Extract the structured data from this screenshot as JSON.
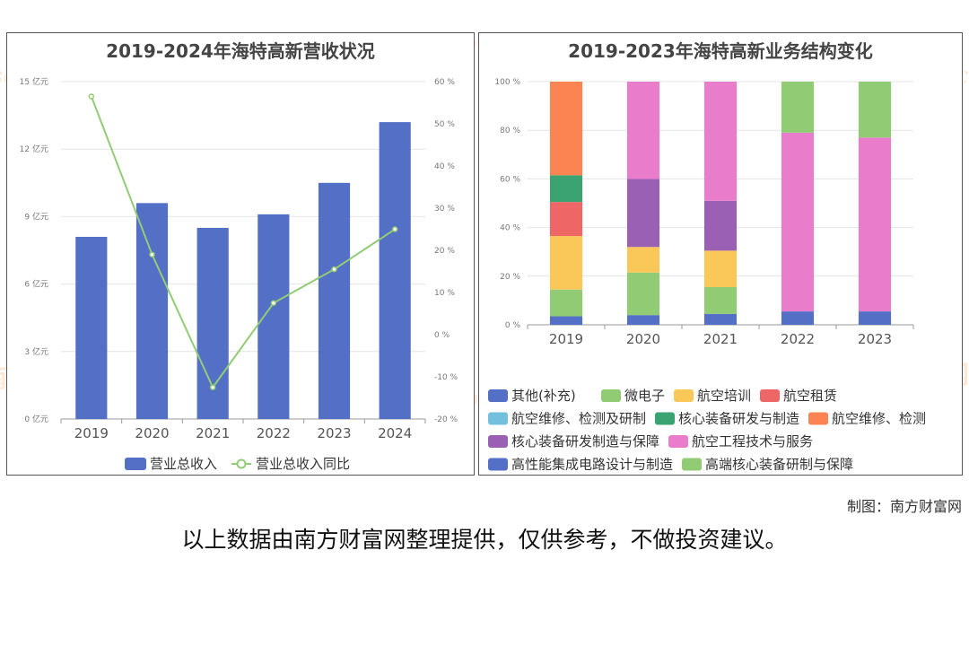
{
  "left": {
    "title": "2019-2024年海特高新营收状况",
    "chart_data": {
      "type": "bar",
      "categories": [
        "2019",
        "2020",
        "2021",
        "2022",
        "2023",
        "2024"
      ],
      "series": [
        {
          "name": "营业总收入",
          "type": "bar",
          "axis": "left",
          "values": [
            8.1,
            9.6,
            8.5,
            9.1,
            10.5,
            13.2
          ]
        },
        {
          "name": "营业总收入同比",
          "type": "line",
          "axis": "right",
          "values": [
            56.5,
            19.0,
            -12.5,
            7.5,
            15.5,
            25.0
          ]
        }
      ],
      "ylim_left": [
        0,
        15
      ],
      "yticks_left": [
        "0 亿元",
        "3 亿元",
        "6 亿元",
        "9 亿元",
        "12 亿元",
        "15 亿元"
      ],
      "ylim_right": [
        -20,
        60
      ],
      "yticks_right": [
        "-20 %",
        "-10 %",
        "0 %",
        "10 %",
        "20 %",
        "30 %",
        "40 %",
        "50 %",
        "60 %"
      ],
      "colors": {
        "bar": "#5470c6",
        "line": "#91cc75"
      },
      "legend_position": "bottom"
    }
  },
  "right": {
    "title": "2019-2023年海特高新业务结构变化",
    "chart_data": {
      "type": "bar",
      "stacked": true,
      "categories": [
        "2019",
        "2020",
        "2021",
        "2022",
        "2023"
      ],
      "ylim": [
        0,
        100
      ],
      "yticks": [
        "0 %",
        "20 %",
        "40 %",
        "60 %",
        "80 %",
        "100 %"
      ],
      "series": [
        {
          "name": "其他(补充)",
          "color": "#5470c6",
          "values": [
            3.5,
            4.0,
            4.5,
            5.5,
            5.5
          ]
        },
        {
          "name": "微电子",
          "color": "#91cc75",
          "values": [
            11.0,
            17.5,
            11.0,
            0,
            0
          ]
        },
        {
          "name": "航空培训",
          "color": "#fac858",
          "values": [
            22.0,
            10.5,
            15.0,
            0,
            0
          ]
        },
        {
          "name": "航空租赁",
          "color": "#ee6666",
          "values": [
            14.0,
            0,
            0,
            0,
            0
          ]
        },
        {
          "name": "航空维修、检测及研制",
          "color": "#73c0de",
          "values": [
            0,
            0,
            0,
            0,
            0
          ]
        },
        {
          "name": "核心装备研发与制造",
          "color": "#3ba272",
          "values": [
            11.0,
            0,
            0,
            0,
            0
          ]
        },
        {
          "name": "航空维修、检测",
          "color": "#fc8452",
          "values": [
            38.5,
            0,
            0,
            0,
            0
          ]
        },
        {
          "name": "核心装备研发制造与保障",
          "color": "#9a60b4",
          "values": [
            0,
            28.0,
            20.5,
            0,
            0
          ]
        },
        {
          "name": "航空工程技术与服务",
          "color": "#ea7ccc",
          "values": [
            0,
            40.0,
            49.0,
            73.5,
            71.5
          ]
        },
        {
          "name": "高性能集成电路设计与制造",
          "color": "#5470c6",
          "values": [
            0,
            0,
            0,
            0,
            0
          ]
        },
        {
          "name": "高端核心装备研制与保障",
          "color": "#91cc75",
          "values": [
            0,
            0,
            0,
            21.0,
            23.0
          ]
        }
      ],
      "legend_position": "bottom"
    }
  },
  "watermark": {
    "cn": "南方财富网",
    "en": "southmoney.com"
  },
  "credit": "制图：南方财富网",
  "disclaimer": "以上数据由南方财富网整理提供，仅供参考，不做投资建议。"
}
